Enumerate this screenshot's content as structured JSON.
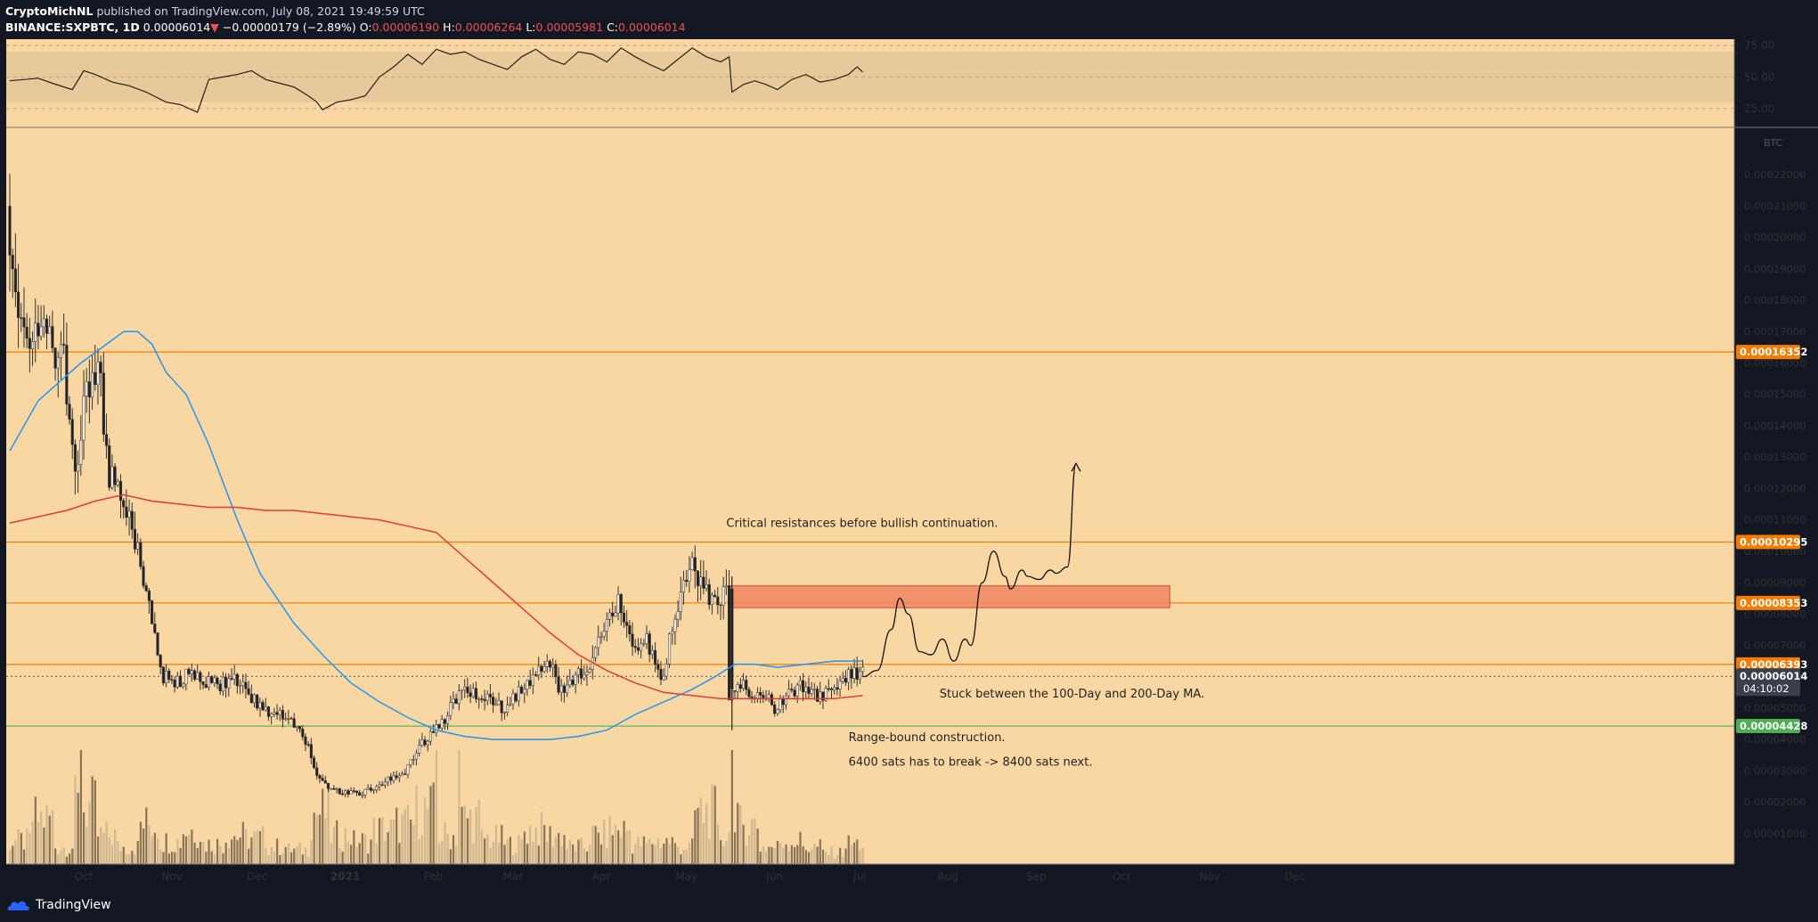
{
  "header": {
    "publisher": "CryptoMichNL",
    "published_text": "published on TradingView.com, July 08, 2021 19:49:59 UTC",
    "symbol": "BINANCE:SXPBTC, 1D",
    "last": "0.00006014",
    "change_arrow": "▼",
    "change": "−0.00000179 (−2.89%)",
    "o_label": "O:",
    "o": "0.00006190",
    "h_label": "H:",
    "h": "0.00006264",
    "l_label": "L:",
    "l": "0.00005981",
    "c_label": "C:",
    "c": "0.00006014"
  },
  "footer": {
    "brand": "TradingView"
  },
  "colors": {
    "page_bg": "#131722",
    "chart_bg": "#f9d7a2",
    "up_candle": "#f2ece0",
    "down_candle": "#222222",
    "ma100": "#2196f3",
    "ma200": "#e53935",
    "hline_orange": "#f57c00",
    "hline_green": "#4caf50",
    "zone": "#ef8662",
    "rsi_band": "#e8c999"
  },
  "chart_data": {
    "type": "candlestick",
    "symbol": "BINANCE:SXPBTC",
    "interval": "1D",
    "currency_label": "BTC",
    "price_range": [
      0.0,
      0.00023
    ],
    "price_ticks": [
      "0.00001000",
      "0.00002000",
      "0.00003000",
      "0.00004000",
      "0.00005000",
      "0.00006000",
      "0.00007000",
      "0.00008000",
      "0.00009000",
      "0.00010000",
      "0.00011000",
      "0.00012000",
      "0.00013000",
      "0.00014000",
      "0.00015000",
      "0.00016000",
      "0.00017000",
      "0.00018000",
      "0.00019000",
      "0.00020000",
      "0.00021000",
      "0.00022000"
    ],
    "time_labels": [
      "Oct",
      "Nov",
      "Dec",
      "2021",
      "Feb",
      "Mar",
      "Apr",
      "May",
      "Jun",
      "Jul",
      "Aug",
      "Sep",
      "Oct",
      "Nov",
      "Dec"
    ],
    "time_label_days": [
      26,
      57,
      87,
      118,
      149,
      177,
      208,
      238,
      269,
      299,
      330,
      361,
      391,
      422,
      452
    ],
    "price_points": [
      [
        0,
        0.00021
      ],
      [
        4,
        0.00018
      ],
      [
        8,
        0.000168
      ],
      [
        12,
        0.00017
      ],
      [
        16,
        0.000165
      ],
      [
        20,
        0.00016
      ],
      [
        24,
        0.000122
      ],
      [
        28,
        0.000152
      ],
      [
        32,
        0.00016
      ],
      [
        36,
        0.000125
      ],
      [
        40,
        0.000118
      ],
      [
        45,
        0.000104
      ],
      [
        50,
        8.2e-05
      ],
      [
        55,
        6e-05
      ],
      [
        60,
        5.8e-05
      ],
      [
        65,
        6.2e-05
      ],
      [
        70,
        5.8e-05
      ],
      [
        75,
        5.7e-05
      ],
      [
        80,
        6e-05
      ],
      [
        85,
        5.4e-05
      ],
      [
        90,
        5e-05
      ],
      [
        95,
        4.8e-05
      ],
      [
        100,
        4.7e-05
      ],
      [
        105,
        4e-05
      ],
      [
        110,
        2.7e-05
      ],
      [
        115,
        2.4e-05
      ],
      [
        120,
        2.3e-05
      ],
      [
        125,
        2.3e-05
      ],
      [
        130,
        2.5e-05
      ],
      [
        135,
        2.8e-05
      ],
      [
        140,
        3e-05
      ],
      [
        145,
        3.8e-05
      ],
      [
        150,
        4.2e-05
      ],
      [
        155,
        4.8e-05
      ],
      [
        160,
        5.7e-05
      ],
      [
        165,
        5.5e-05
      ],
      [
        170,
        5.2e-05
      ],
      [
        175,
        5e-05
      ],
      [
        180,
        5.5e-05
      ],
      [
        185,
        6e-05
      ],
      [
        190,
        6.6e-05
      ],
      [
        195,
        5.5e-05
      ],
      [
        200,
        6e-05
      ],
      [
        205,
        6.4e-05
      ],
      [
        210,
        7.5e-05
      ],
      [
        215,
        8.4e-05
      ],
      [
        220,
        7e-05
      ],
      [
        225,
        7.2e-05
      ],
      [
        230,
        5.7e-05
      ],
      [
        235,
        8e-05
      ],
      [
        240,
        9.7e-05
      ],
      [
        245,
        8.8e-05
      ],
      [
        250,
        8.2e-05
      ],
      [
        253,
        8.8e-05
      ],
      [
        254,
        5.2e-05
      ],
      [
        258,
        5.8e-05
      ],
      [
        262,
        5.5e-05
      ],
      [
        266,
        5.5e-05
      ],
      [
        270,
        5e-05
      ],
      [
        275,
        5.5e-05
      ],
      [
        280,
        5.7e-05
      ],
      [
        285,
        5.4e-05
      ],
      [
        290,
        5.5e-05
      ],
      [
        295,
        6e-05
      ],
      [
        300,
        6.1e-05
      ]
    ],
    "volume_levels": [
      0.4,
      0.8,
      0.3,
      1.0,
      0.5,
      0.3,
      0.7,
      0.4,
      0.6,
      0.35,
      0.5,
      0.45,
      0.3,
      0.25,
      0.9,
      0.5,
      0.4,
      0.6,
      0.7,
      0.95,
      0.5,
      0.8,
      0.45,
      0.35,
      0.6,
      0.5,
      0.3,
      0.5,
      0.6,
      0.35,
      0.4,
      0.3,
      0.9,
      0.5,
      0.7,
      0.3,
      0.4,
      0.3,
      0.2,
      0.35
    ],
    "ma100": {
      "label": "100-Day MA",
      "points": [
        [
          0,
          0.000132
        ],
        [
          10,
          0.000148
        ],
        [
          25,
          0.00016
        ],
        [
          40,
          0.00017
        ],
        [
          45,
          0.00017
        ],
        [
          50,
          0.000166
        ],
        [
          55,
          0.000157
        ],
        [
          62,
          0.00015
        ],
        [
          70,
          0.000134
        ],
        [
          80,
          0.00011
        ],
        [
          88,
          9.3e-05
        ],
        [
          100,
          7.7e-05
        ],
        [
          110,
          6.7e-05
        ],
        [
          120,
          5.8e-05
        ],
        [
          130,
          5.2e-05
        ],
        [
          140,
          4.7e-05
        ],
        [
          150,
          4.3e-05
        ],
        [
          160,
          4.1e-05
        ],
        [
          170,
          4e-05
        ],
        [
          180,
          4e-05
        ],
        [
          190,
          4e-05
        ],
        [
          200,
          4.1e-05
        ],
        [
          210,
          4.3e-05
        ],
        [
          220,
          4.8e-05
        ],
        [
          230,
          5.2e-05
        ],
        [
          240,
          5.6e-05
        ],
        [
          248,
          6e-05
        ],
        [
          255,
          6.4e-05
        ],
        [
          262,
          6.4e-05
        ],
        [
          270,
          6.3e-05
        ],
        [
          280,
          6.4e-05
        ],
        [
          290,
          6.5e-05
        ],
        [
          300,
          6.5e-05
        ]
      ]
    },
    "ma200": {
      "label": "200-Day MA",
      "points": [
        [
          0,
          0.000109
        ],
        [
          10,
          0.000111
        ],
        [
          20,
          0.000113
        ],
        [
          30,
          0.000116
        ],
        [
          40,
          0.000118
        ],
        [
          50,
          0.000116
        ],
        [
          60,
          0.000115
        ],
        [
          70,
          0.000114
        ],
        [
          80,
          0.000114
        ],
        [
          90,
          0.000113
        ],
        [
          100,
          0.000113
        ],
        [
          110,
          0.000112
        ],
        [
          120,
          0.000111
        ],
        [
          130,
          0.00011
        ],
        [
          140,
          0.000108
        ],
        [
          150,
          0.000106
        ],
        [
          160,
          9.8e-05
        ],
        [
          170,
          9e-05
        ],
        [
          180,
          8.2e-05
        ],
        [
          190,
          7.4e-05
        ],
        [
          200,
          6.7e-05
        ],
        [
          210,
          6.2e-05
        ],
        [
          220,
          5.8e-05
        ],
        [
          230,
          5.5e-05
        ],
        [
          240,
          5.4e-05
        ],
        [
          250,
          5.3e-05
        ],
        [
          260,
          5.3e-05
        ],
        [
          270,
          5.3e-05
        ],
        [
          280,
          5.3e-05
        ],
        [
          290,
          5.3e-05
        ],
        [
          300,
          5.4e-05
        ]
      ]
    },
    "horizontal_levels": [
      {
        "price": 0.00016352,
        "label": "0.00016352",
        "color": "#f57c00"
      },
      {
        "price": 0.00010295,
        "label": "0.00010295",
        "color": "#f57c00"
      },
      {
        "price": 8.353e-05,
        "label": "0.00008353",
        "color": "#f57c00"
      },
      {
        "price": 6.393e-05,
        "label": "0.00006393",
        "color": "#f57c00"
      },
      {
        "price": 4.428e-05,
        "label": "0.00004428",
        "color": "#4caf50"
      }
    ],
    "last_price": {
      "price": 6.014e-05,
      "label": "0.00006014",
      "countdown": "04:10:02"
    },
    "resistance_zone": {
      "from_day": 253,
      "to_day": 408,
      "low": 8.2e-05,
      "high": 8.9e-05
    },
    "projection_path": [
      [
        300,
        6e-05
      ],
      [
        305,
        6.2e-05
      ],
      [
        310,
        7.5e-05
      ],
      [
        313,
        8.5e-05
      ],
      [
        316,
        8e-05
      ],
      [
        320,
        6.8e-05
      ],
      [
        324,
        6.7e-05
      ],
      [
        328,
        7.2e-05
      ],
      [
        332,
        6.5e-05
      ],
      [
        336,
        7.2e-05
      ],
      [
        338,
        7e-05
      ],
      [
        342,
        9e-05
      ],
      [
        346,
        0.0001
      ],
      [
        350,
        9.2e-05
      ],
      [
        352,
        8.8e-05
      ],
      [
        356,
        9.4e-05
      ],
      [
        358,
        9.2e-05
      ],
      [
        362,
        9.1e-05
      ],
      [
        366,
        9.4e-05
      ],
      [
        368,
        9.3e-05
      ],
      [
        372,
        9.5e-05
      ],
      [
        375,
        0.000128
      ]
    ],
    "annotations": [
      {
        "text": "Critical resistances before bullish continuation.",
        "day": 252,
        "price": 0.0001078
      },
      {
        "text": "Stuck between the 100-Day and 200-Day MA.",
        "day": 327,
        "price": 5.34e-05
      },
      {
        "text": "Range-bound construction.",
        "day": 295,
        "price": 3.95e-05
      },
      {
        "text": "6400 sats has to break -> 8400 sats next.",
        "day": 295,
        "price": 3.16e-05
      }
    ],
    "rsi": {
      "ticks": [
        "75.00",
        "50.00",
        "25.00"
      ],
      "range": [
        10,
        80
      ],
      "band": [
        30,
        70
      ],
      "points": [
        [
          0,
          47
        ],
        [
          10,
          49
        ],
        [
          15,
          45
        ],
        [
          22,
          40
        ],
        [
          26,
          55
        ],
        [
          30,
          52
        ],
        [
          36,
          46
        ],
        [
          42,
          43
        ],
        [
          48,
          38
        ],
        [
          55,
          30
        ],
        [
          60,
          28
        ],
        [
          66,
          22
        ],
        [
          70,
          48
        ],
        [
          75,
          50
        ],
        [
          80,
          52
        ],
        [
          85,
          55
        ],
        [
          90,
          48
        ],
        [
          95,
          45
        ],
        [
          100,
          42
        ],
        [
          105,
          35
        ],
        [
          108,
          30
        ],
        [
          110,
          24
        ],
        [
          115,
          30
        ],
        [
          120,
          32
        ],
        [
          125,
          35
        ],
        [
          130,
          50
        ],
        [
          135,
          58
        ],
        [
          140,
          68
        ],
        [
          145,
          60
        ],
        [
          150,
          72
        ],
        [
          155,
          68
        ],
        [
          160,
          70
        ],
        [
          165,
          64
        ],
        [
          170,
          60
        ],
        [
          175,
          56
        ],
        [
          180,
          66
        ],
        [
          185,
          72
        ],
        [
          190,
          64
        ],
        [
          195,
          60
        ],
        [
          200,
          70
        ],
        [
          205,
          68
        ],
        [
          210,
          62
        ],
        [
          215,
          73
        ],
        [
          220,
          66
        ],
        [
          225,
          60
        ],
        [
          230,
          55
        ],
        [
          235,
          64
        ],
        [
          240,
          73
        ],
        [
          245,
          66
        ],
        [
          250,
          62
        ],
        [
          253,
          66
        ],
        [
          254,
          38
        ],
        [
          258,
          44
        ],
        [
          262,
          47
        ],
        [
          266,
          44
        ],
        [
          270,
          40
        ],
        [
          275,
          48
        ],
        [
          280,
          52
        ],
        [
          285,
          46
        ],
        [
          290,
          48
        ],
        [
          295,
          52
        ],
        [
          298,
          58
        ],
        [
          300,
          54
        ]
      ]
    }
  }
}
